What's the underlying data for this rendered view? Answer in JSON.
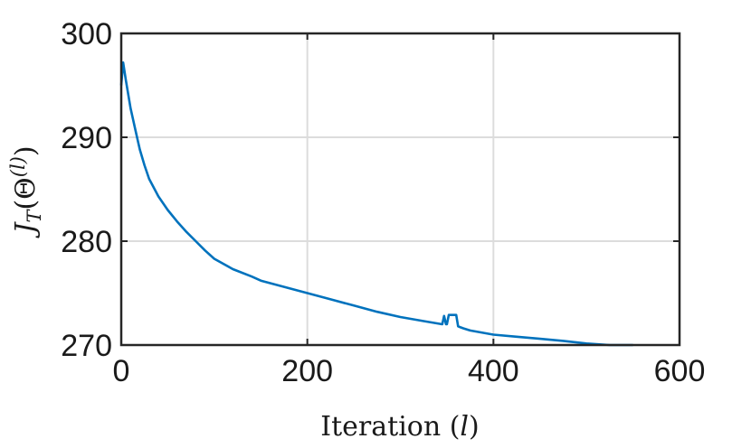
{
  "chart_data": {
    "type": "line",
    "title": "",
    "xlabel_parts": [
      "Iteration (",
      "l",
      ")"
    ],
    "ylabel_parts": [
      "J",
      "T",
      "(Θ",
      "(l)",
      ")"
    ],
    "xlim": [
      0,
      600
    ],
    "ylim": [
      270,
      300
    ],
    "xticks": [
      0,
      200,
      400,
      600
    ],
    "yticks": [
      270,
      280,
      290,
      300
    ],
    "xtick_labels": [
      "0",
      "200",
      "400",
      "600"
    ],
    "ytick_labels": [
      "270",
      "280",
      "290",
      "300"
    ],
    "grid": true,
    "line_color": "#0072bd",
    "series": [
      {
        "x": [
          0,
          2,
          5,
          10,
          15,
          18,
          20,
          25,
          30,
          40,
          50,
          60,
          70,
          80,
          90,
          100,
          120,
          140,
          150,
          175,
          200,
          225,
          250,
          275,
          300,
          325,
          345,
          347,
          349,
          350,
          352,
          355,
          358,
          360,
          362,
          365,
          368,
          375,
          400,
          425,
          450,
          475,
          500,
          525,
          550
        ],
        "y": [
          295.0,
          297.2,
          295.5,
          292.8,
          290.8,
          289.6,
          288.8,
          287.3,
          286.0,
          284.3,
          283.0,
          281.9,
          280.9,
          280.0,
          279.1,
          278.3,
          277.3,
          276.6,
          276.2,
          275.6,
          275.0,
          274.4,
          273.8,
          273.2,
          272.7,
          272.3,
          272.0,
          272.8,
          272.0,
          272.0,
          272.9,
          272.9,
          272.9,
          272.9,
          271.8,
          271.7,
          271.6,
          271.4,
          271.0,
          270.8,
          270.6,
          270.4,
          270.15,
          270.0,
          270.0
        ]
      }
    ]
  }
}
